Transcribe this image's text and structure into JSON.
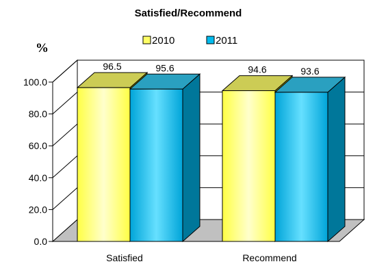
{
  "chart_data": {
    "type": "bar",
    "title": "Satisfied/Recommend",
    "ylabel": "%",
    "xlabel": "",
    "categories": [
      "Satisfied",
      "Recommend"
    ],
    "series": [
      {
        "name": "2010",
        "values": [
          96.5,
          94.6
        ],
        "color": "#ffff66"
      },
      {
        "name": "2011",
        "values": [
          95.6,
          93.6
        ],
        "color": "#00bbee"
      }
    ],
    "yticks": [
      "0.0",
      "20.0",
      "40.0",
      "60.0",
      "80.0",
      "100.0"
    ],
    "ylim": [
      0,
      100
    ],
    "grid": true,
    "legend": "top",
    "three_d": true
  }
}
